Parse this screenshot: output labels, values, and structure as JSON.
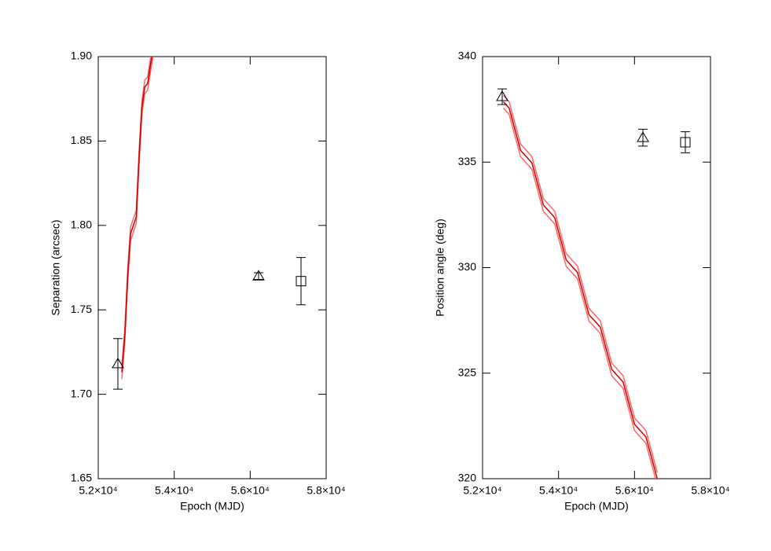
{
  "chart_data": [
    {
      "type": "line",
      "xlabel": "Epoch (MJD)",
      "ylabel": "Separation (arcsec)",
      "xlim": [
        52000,
        58000
      ],
      "xticks": [
        {
          "value": 52000,
          "label": "5.2×10⁴"
        },
        {
          "value": 54000,
          "label": "5.4×10⁴"
        },
        {
          "value": 56000,
          "label": "5.6×10⁴"
        },
        {
          "value": 58000,
          "label": "5.8×10⁴"
        }
      ],
      "ylim": [
        1.65,
        1.9
      ],
      "yticks": [
        1.65,
        {
          "value": 1.7,
          "label": "1.70"
        },
        1.75,
        {
          "value": 1.8,
          "label": "1.80"
        },
        1.85,
        {
          "value": 1.9,
          "label": "1.90"
        }
      ],
      "series": [
        {
          "color": "#ff6666",
          "x": [
            52620,
            52700,
            52775,
            52850,
            52925,
            53000,
            53075,
            53150,
            53225,
            53300,
            53375,
            53450
          ],
          "values": [
            1.717,
            1.739,
            1.774,
            1.799,
            1.804,
            1.809,
            1.844,
            1.874,
            1.886,
            1.888,
            1.899,
            1.909
          ]
        },
        {
          "color": "#ff6666",
          "x": [
            52620,
            52700,
            52775,
            52850,
            52925,
            53000,
            53075,
            53150,
            53225,
            53300,
            53375,
            53450
          ],
          "values": [
            1.709,
            1.731,
            1.766,
            1.791,
            1.796,
            1.801,
            1.836,
            1.866,
            1.878,
            1.88,
            1.891,
            1.901
          ]
        },
        {
          "color": "#cc0000",
          "x": [
            52620,
            52700,
            52775,
            52850,
            52925,
            53000,
            53075,
            53150,
            53225,
            53300,
            53375,
            53450
          ],
          "values": [
            1.713,
            1.735,
            1.77,
            1.795,
            1.8,
            1.805,
            1.84,
            1.87,
            1.882,
            1.884,
            1.895,
            1.905
          ]
        }
      ],
      "points": [
        {
          "marker": "triangle",
          "x": [
            52517,
            56221
          ],
          "values": [
            1.718,
            1.77
          ],
          "errors": [
            0.015,
            0.002
          ]
        },
        {
          "marker": "square",
          "x": [
            57338
          ],
          "values": [
            1.767
          ],
          "errors": [
            0.014
          ]
        }
      ]
    },
    {
      "type": "line",
      "xlabel": "Epoch (MJD)",
      "ylabel": "Position angle (deg)",
      "xlim": [
        52000,
        58000
      ],
      "xticks": [
        {
          "value": 52000,
          "label": "5.2×10⁴"
        },
        {
          "value": 54000,
          "label": "5.4×10⁴"
        },
        {
          "value": 56000,
          "label": "5.6×10⁴"
        },
        {
          "value": 58000,
          "label": "5.8×10⁴"
        }
      ],
      "ylim": [
        320,
        340
      ],
      "yticks": [
        320,
        325,
        330,
        335,
        340
      ],
      "series": [
        {
          "color": "#ff6666",
          "x": [
            52550,
            52700,
            52850,
            53000,
            53150,
            53300,
            53450,
            53600,
            53750,
            53900,
            54050,
            54200,
            54350,
            54500,
            54650,
            54800,
            54950,
            55100,
            55250,
            55400,
            55550,
            55700,
            55850,
            56000,
            56150,
            56300,
            56450,
            56600
          ],
          "values": [
            338.16,
            337.86,
            336.86,
            335.86,
            335.56,
            335.26,
            334.27,
            333.27,
            332.97,
            332.67,
            331.67,
            330.67,
            330.37,
            330.07,
            329.07,
            328.07,
            327.78,
            327.48,
            326.48,
            325.48,
            325.18,
            324.88,
            323.88,
            322.88,
            322.58,
            322.28,
            321.29,
            320.29
          ]
        },
        {
          "color": "#ff6666",
          "x": [
            52550,
            52700,
            52850,
            53000,
            53150,
            53300,
            53450,
            53600,
            53750,
            53900,
            54050,
            54200,
            54350,
            54500,
            54650,
            54800,
            54950,
            55100,
            55250,
            55400,
            55550,
            55700,
            55850,
            56000,
            56150,
            56300,
            56450,
            56600
          ],
          "values": [
            337.56,
            337.26,
            336.26,
            335.26,
            334.96,
            334.66,
            333.67,
            332.67,
            332.37,
            332.07,
            331.07,
            330.07,
            329.77,
            329.47,
            328.47,
            327.47,
            327.18,
            326.88,
            325.88,
            324.88,
            324.58,
            324.28,
            323.28,
            322.28,
            321.98,
            321.68,
            320.69,
            319.69
          ]
        },
        {
          "color": "#cc0000",
          "x": [
            52550,
            52700,
            52850,
            53000,
            53150,
            53300,
            53450,
            53600,
            53750,
            53900,
            54050,
            54200,
            54350,
            54500,
            54650,
            54800,
            54950,
            55100,
            55250,
            55400,
            55550,
            55700,
            55850,
            56000,
            56150,
            56300,
            56450,
            56600
          ],
          "values": [
            337.86,
            337.56,
            336.56,
            335.56,
            335.26,
            334.96,
            333.97,
            332.97,
            332.67,
            332.37,
            331.37,
            330.37,
            330.07,
            329.77,
            328.77,
            327.77,
            327.48,
            327.18,
            326.18,
            325.18,
            324.88,
            324.58,
            323.58,
            322.58,
            322.28,
            321.98,
            320.99,
            319.99
          ]
        }
      ],
      "points": [
        {
          "marker": "triangle",
          "x": [
            52517,
            56221
          ],
          "values": [
            338.1,
            336.16
          ],
          "errors": [
            0.37,
            0.4
          ]
        },
        {
          "marker": "square",
          "x": [
            57338
          ],
          "values": [
            335.94
          ],
          "errors": [
            0.5
          ]
        }
      ]
    }
  ]
}
